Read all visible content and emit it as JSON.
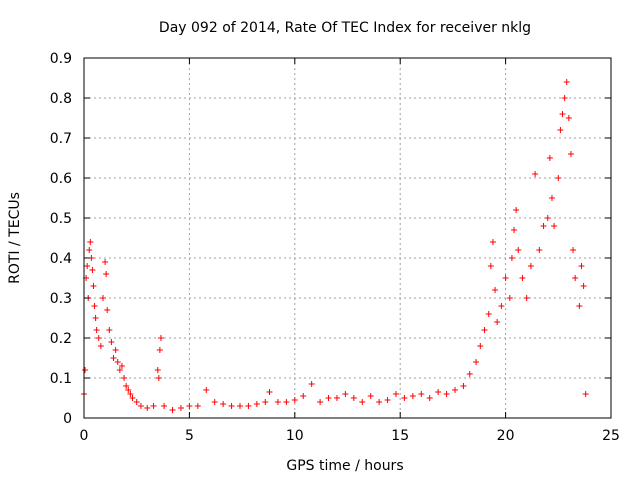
{
  "chart_data": {
    "type": "scatter",
    "title": "Day 092 of 2014, Rate Of TEC Index for receiver nklg",
    "xlabel": "GPS time / hours",
    "ylabel": "ROTI / TECUs",
    "xlim": [
      0,
      25
    ],
    "ylim": [
      0,
      0.9
    ],
    "xticks": [
      0,
      5,
      10,
      15,
      20,
      25
    ],
    "yticks": [
      0,
      0.1,
      0.2,
      0.3,
      0.4,
      0.5,
      0.6,
      0.7,
      0.8,
      0.9
    ],
    "xtick_labels": [
      "0",
      "5",
      "10",
      "15",
      "20",
      "25"
    ],
    "ytick_labels": [
      "0",
      "0.1",
      "0.2",
      "0.3",
      "0.4",
      "0.5",
      "0.6",
      "0.7",
      "0.8",
      "0.9"
    ],
    "grid": true,
    "marker": "+",
    "series": [
      {
        "color": "#ff0000",
        "points": [
          [
            0.0,
            0.06
          ],
          [
            0.05,
            0.12
          ],
          [
            0.1,
            0.35
          ],
          [
            0.15,
            0.38
          ],
          [
            0.2,
            0.3
          ],
          [
            0.25,
            0.42
          ],
          [
            0.3,
            0.44
          ],
          [
            0.35,
            0.4
          ],
          [
            0.4,
            0.37
          ],
          [
            0.45,
            0.33
          ],
          [
            0.5,
            0.28
          ],
          [
            0.55,
            0.25
          ],
          [
            0.6,
            0.22
          ],
          [
            0.7,
            0.2
          ],
          [
            0.8,
            0.18
          ],
          [
            0.9,
            0.3
          ],
          [
            1.0,
            0.39
          ],
          [
            1.05,
            0.36
          ],
          [
            1.1,
            0.27
          ],
          [
            1.2,
            0.22
          ],
          [
            1.3,
            0.19
          ],
          [
            1.4,
            0.15
          ],
          [
            1.5,
            0.17
          ],
          [
            1.6,
            0.14
          ],
          [
            1.7,
            0.12
          ],
          [
            1.8,
            0.13
          ],
          [
            1.9,
            0.1
          ],
          [
            2.0,
            0.08
          ],
          [
            2.1,
            0.07
          ],
          [
            2.2,
            0.06
          ],
          [
            2.3,
            0.05
          ],
          [
            2.5,
            0.04
          ],
          [
            2.7,
            0.03
          ],
          [
            3.0,
            0.025
          ],
          [
            3.3,
            0.03
          ],
          [
            3.5,
            0.12
          ],
          [
            3.55,
            0.1
          ],
          [
            3.6,
            0.17
          ],
          [
            3.65,
            0.2
          ],
          [
            3.8,
            0.03
          ],
          [
            4.2,
            0.02
          ],
          [
            4.6,
            0.025
          ],
          [
            5.0,
            0.03
          ],
          [
            5.4,
            0.03
          ],
          [
            5.8,
            0.07
          ],
          [
            6.2,
            0.04
          ],
          [
            6.6,
            0.035
          ],
          [
            7.0,
            0.03
          ],
          [
            7.4,
            0.03
          ],
          [
            7.8,
            0.03
          ],
          [
            8.2,
            0.035
          ],
          [
            8.6,
            0.04
          ],
          [
            8.8,
            0.065
          ],
          [
            9.2,
            0.04
          ],
          [
            9.6,
            0.04
          ],
          [
            10.0,
            0.045
          ],
          [
            10.4,
            0.055
          ],
          [
            10.8,
            0.085
          ],
          [
            11.2,
            0.04
          ],
          [
            11.6,
            0.05
          ],
          [
            12.0,
            0.05
          ],
          [
            12.4,
            0.06
          ],
          [
            12.8,
            0.05
          ],
          [
            13.2,
            0.04
          ],
          [
            13.6,
            0.055
          ],
          [
            14.0,
            0.04
          ],
          [
            14.4,
            0.045
          ],
          [
            14.8,
            0.06
          ],
          [
            15.2,
            0.05
          ],
          [
            15.6,
            0.055
          ],
          [
            16.0,
            0.06
          ],
          [
            16.4,
            0.05
          ],
          [
            16.8,
            0.065
          ],
          [
            17.2,
            0.06
          ],
          [
            17.6,
            0.07
          ],
          [
            18.0,
            0.08
          ],
          [
            18.3,
            0.11
          ],
          [
            18.6,
            0.14
          ],
          [
            18.8,
            0.18
          ],
          [
            19.0,
            0.22
          ],
          [
            19.2,
            0.26
          ],
          [
            19.3,
            0.38
          ],
          [
            19.4,
            0.44
          ],
          [
            19.5,
            0.32
          ],
          [
            19.6,
            0.24
          ],
          [
            19.8,
            0.28
          ],
          [
            20.0,
            0.35
          ],
          [
            20.2,
            0.3
          ],
          [
            20.3,
            0.4
          ],
          [
            20.4,
            0.47
          ],
          [
            20.5,
            0.52
          ],
          [
            20.6,
            0.42
          ],
          [
            20.8,
            0.35
          ],
          [
            21.0,
            0.3
          ],
          [
            21.2,
            0.38
          ],
          [
            21.4,
            0.61
          ],
          [
            21.6,
            0.42
          ],
          [
            21.8,
            0.48
          ],
          [
            22.0,
            0.5
          ],
          [
            22.1,
            0.65
          ],
          [
            22.2,
            0.55
          ],
          [
            22.3,
            0.48
          ],
          [
            22.5,
            0.6
          ],
          [
            22.6,
            0.72
          ],
          [
            22.7,
            0.76
          ],
          [
            22.8,
            0.8
          ],
          [
            22.9,
            0.84
          ],
          [
            23.0,
            0.75
          ],
          [
            23.1,
            0.66
          ],
          [
            23.2,
            0.42
          ],
          [
            23.3,
            0.35
          ],
          [
            23.5,
            0.28
          ],
          [
            23.6,
            0.38
          ],
          [
            23.7,
            0.33
          ],
          [
            23.8,
            0.06
          ]
        ]
      }
    ]
  }
}
